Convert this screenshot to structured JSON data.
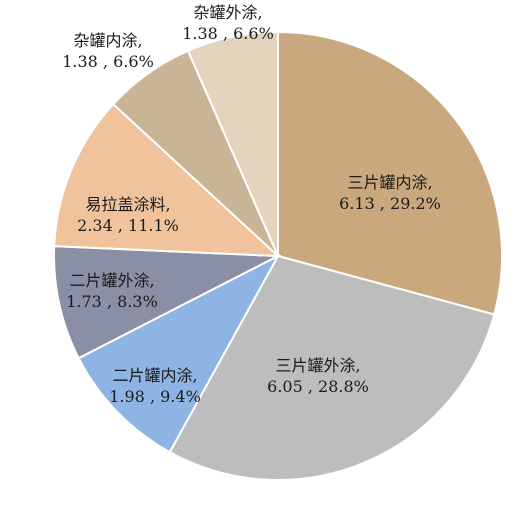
{
  "chart_data": {
    "type": "pie",
    "title": "",
    "start_angle_deg": 0,
    "direction": "clockwise",
    "slices": [
      {
        "label": "三片罐内涂",
        "value": 6.13,
        "percent": "29.2%",
        "value_text": "6.13",
        "color": "#C8A87C"
      },
      {
        "label": "三片罐外涂",
        "value": 6.05,
        "percent": "28.8%",
        "value_text": "6.05",
        "color": "#BDBDBD"
      },
      {
        "label": "二片罐内涂",
        "value": 1.98,
        "percent": "9.4%",
        "value_text": "1.98",
        "color": "#8EB4E3"
      },
      {
        "label": "二片罐外涂",
        "value": 1.73,
        "percent": "8.3%",
        "value_text": "1.73",
        "color": "#8B8FA6"
      },
      {
        "label": "易拉盖涂料",
        "value": 2.34,
        "percent": "11.1%",
        "value_text": "2.34",
        "color": "#F0C39C"
      },
      {
        "label": "杂罐内涂",
        "value": 1.38,
        "percent": "6.6%",
        "value_text": "1.38",
        "color": "#C9B596"
      },
      {
        "label": "杂罐外涂",
        "value": 1.38,
        "percent": "6.6%",
        "value_text": "1.38",
        "color": "#E4D3BD"
      }
    ]
  }
}
